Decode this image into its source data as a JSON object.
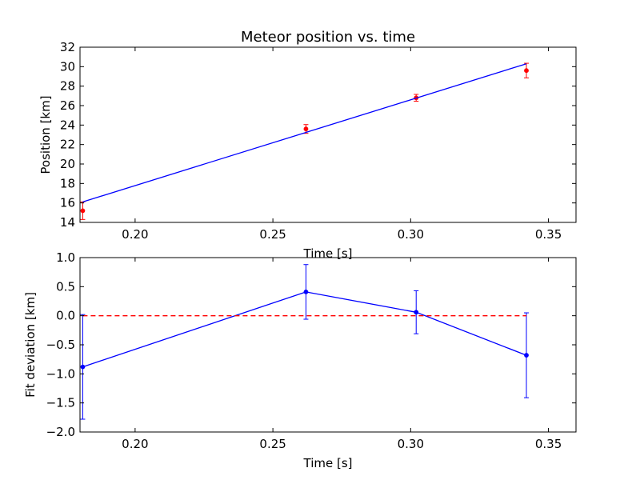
{
  "chart_data": [
    {
      "type": "scatter",
      "title": "Meteor position vs. time",
      "xlabel": "Time [s]",
      "ylabel": "Position [km]",
      "xlim": [
        0.18,
        0.36
      ],
      "ylim": [
        14,
        32
      ],
      "xticks": [
        0.2,
        0.25,
        0.3,
        0.35
      ],
      "xtick_labels": [
        "0.20",
        "0.25",
        "0.30",
        "0.35"
      ],
      "yticks": [
        14,
        16,
        18,
        20,
        22,
        24,
        26,
        28,
        30,
        32
      ],
      "ytick_labels": [
        "14",
        "16",
        "18",
        "20",
        "22",
        "24",
        "26",
        "28",
        "30",
        "32"
      ],
      "grid": false,
      "series": [
        {
          "kind": "errorbar-points",
          "x": [
            0.181,
            0.262,
            0.302,
            0.342
          ],
          "y": [
            15.2,
            23.6,
            26.8,
            29.6
          ],
          "yerr": [
            0.9,
            0.45,
            0.35,
            0.75
          ],
          "color": "#ff0000"
        },
        {
          "kind": "fit-line",
          "x": [
            0.181,
            0.342
          ],
          "y": [
            16.1,
            30.3
          ],
          "color": "#0000ff"
        }
      ]
    },
    {
      "type": "line",
      "title": "",
      "xlabel": "Time [s]",
      "ylabel": "Fit deviation [km]",
      "xlim": [
        0.18,
        0.36
      ],
      "ylim": [
        -2.0,
        1.0
      ],
      "xticks": [
        0.2,
        0.25,
        0.3,
        0.35
      ],
      "xtick_labels": [
        "0.20",
        "0.25",
        "0.30",
        "0.35"
      ],
      "yticks": [
        -2.0,
        -1.5,
        -1.0,
        -0.5,
        0.0,
        0.5,
        1.0
      ],
      "ytick_labels": [
        "−2.0",
        "−1.5",
        "−1.0",
        "−0.5",
        "0.0",
        "0.5",
        "1.0"
      ],
      "grid": false,
      "series": [
        {
          "kind": "errorbar-line",
          "x": [
            0.181,
            0.262,
            0.302,
            0.342
          ],
          "y": [
            -0.88,
            0.41,
            0.06,
            -0.68
          ],
          "yerr": [
            0.9,
            0.47,
            0.37,
            0.73
          ],
          "color": "#0000ff"
        },
        {
          "kind": "reference-line",
          "x": [
            0.181,
            0.342
          ],
          "y": [
            0.0,
            0.0
          ],
          "color": "#ff0000",
          "dashed": true
        }
      ]
    }
  ]
}
